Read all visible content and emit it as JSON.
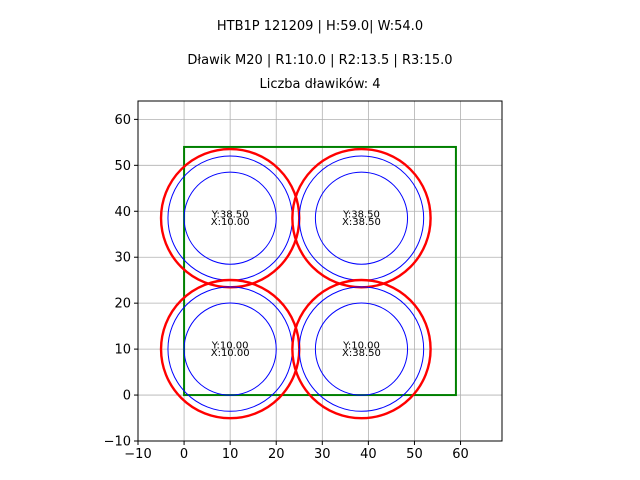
{
  "chart_data": {
    "type": "scatter",
    "title_lines": [
      "HTB1P 121209 | H:59.0| W:54.0",
      "Dławik M20 | R1:10.0 | R2:13.5 | R3:15.0",
      "Liczba dławików: 4"
    ],
    "xlim": [
      -10,
      69
    ],
    "ylim": [
      -10,
      64
    ],
    "x_ticks": [
      "−10",
      "0",
      "10",
      "20",
      "30",
      "40",
      "50",
      "60"
    ],
    "x_tick_values": [
      -10,
      0,
      10,
      20,
      30,
      40,
      50,
      60
    ],
    "y_ticks": [
      "−10",
      "0",
      "10",
      "20",
      "30",
      "40",
      "50",
      "60"
    ],
    "y_tick_values": [
      -10,
      0,
      10,
      20,
      30,
      40,
      50,
      60
    ],
    "grid": true,
    "box": {
      "x0": 0,
      "y0": 0,
      "x1": 59,
      "y1": 54,
      "color": "#008000"
    },
    "radii": {
      "r1": 10.0,
      "r2": 13.5,
      "r3": 15.0
    },
    "colors": {
      "inner": "#0000ff",
      "outer": "#ff0000"
    },
    "glands": [
      {
        "x": 10.0,
        "y": 38.5,
        "label_y": "Y:38.50",
        "label_x": "X:10.00"
      },
      {
        "x": 38.5,
        "y": 38.5,
        "label_y": "Y:38.50",
        "label_x": "X:38.50"
      },
      {
        "x": 10.0,
        "y": 10.0,
        "label_y": "Y:10.00",
        "label_x": "X:10.00"
      },
      {
        "x": 38.5,
        "y": 10.0,
        "label_y": "Y:10.00",
        "label_x": "X:38.50"
      }
    ]
  }
}
